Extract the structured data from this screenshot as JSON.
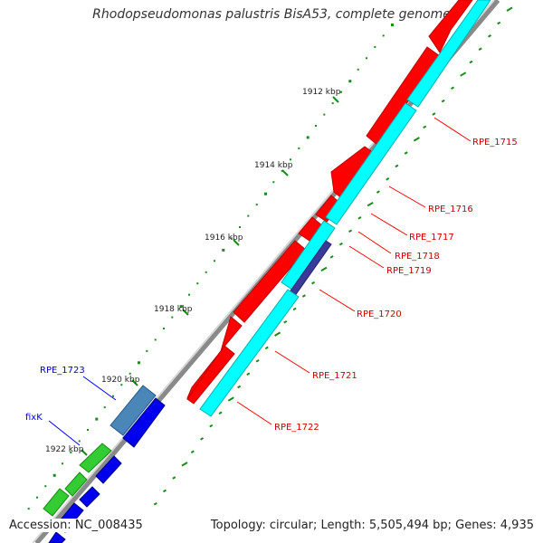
{
  "title": "Rhodopseudomonas palustris BisA53, complete genome",
  "footer": {
    "accession": "Accession: NC_008435",
    "summary": "Topology: circular; Length: 5,505,494 bp; Genes: 4,935"
  },
  "colors": {
    "outer_strand_gene": "#ff0000",
    "inner_strand_gene": "#00ffff",
    "inner_strand_dark": "#3a3a9a",
    "backbone": "#8a8a8a",
    "tick": "#1a8a1a",
    "gene_label_red": "#cc0000",
    "gene_label_blue": "#0000cc",
    "blue_gene": "#0000ee",
    "green_gene": "#33cc33",
    "steel_gene": "#4a86b8"
  },
  "scale_labels": [
    "1912 kbp",
    "1914 kbp",
    "1916 kbp",
    "1918 kbp",
    "1920 kbp",
    "1922 kbp"
  ],
  "gene_labels": {
    "red": [
      "RPE_1715",
      "RPE_1716",
      "RPE_1717",
      "RPE_1718",
      "RPE_1719",
      "RPE_1720",
      "RPE_1721",
      "RPE_1722"
    ],
    "blue": [
      "RPE_1723",
      "fixK"
    ]
  }
}
